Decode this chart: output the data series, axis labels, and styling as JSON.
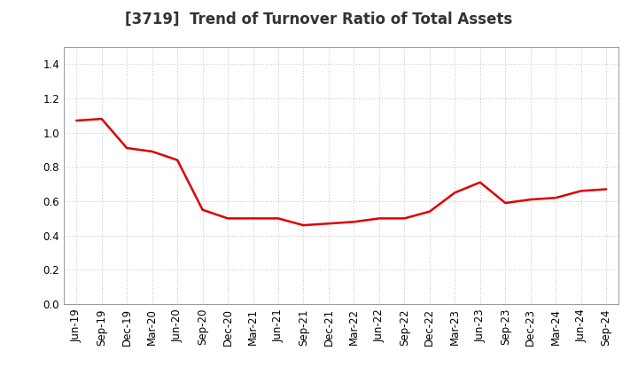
{
  "title": "[3719]  Trend of Turnover Ratio of Total Assets",
  "x_labels": [
    "Jun-19",
    "Sep-19",
    "Dec-19",
    "Mar-20",
    "Jun-20",
    "Sep-20",
    "Dec-20",
    "Mar-21",
    "Jun-21",
    "Sep-21",
    "Dec-21",
    "Mar-22",
    "Jun-22",
    "Sep-22",
    "Dec-22",
    "Mar-23",
    "Jun-23",
    "Sep-23",
    "Dec-23",
    "Mar-24",
    "Jun-24",
    "Sep-24"
  ],
  "y_values": [
    1.07,
    1.08,
    0.91,
    0.89,
    0.84,
    0.55,
    0.5,
    0.5,
    0.5,
    0.46,
    0.47,
    0.48,
    0.5,
    0.5,
    0.54,
    0.65,
    0.71,
    0.59,
    0.61,
    0.62,
    0.66,
    0.67
  ],
  "line_color": "#dd0000",
  "line_width": 1.8,
  "ylim": [
    0.0,
    1.5
  ],
  "yticks": [
    0.0,
    0.2,
    0.4,
    0.6,
    0.8,
    1.0,
    1.2,
    1.4
  ],
  "background_color": "#ffffff",
  "plot_bg_color": "#ffffff",
  "grid_color": "#c0c0c0",
  "title_fontsize": 12,
  "tick_fontsize": 8.5
}
